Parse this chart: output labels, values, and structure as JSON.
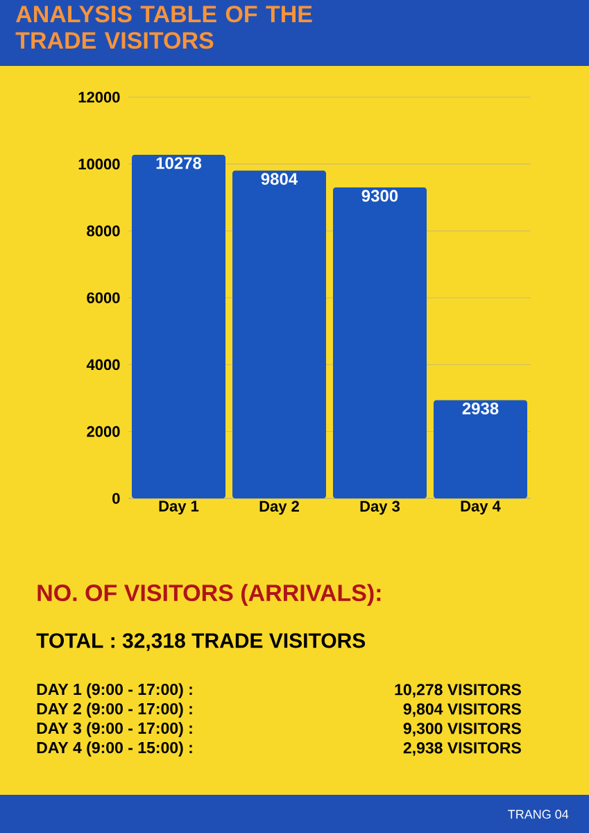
{
  "chart_data": {
    "type": "bar",
    "title": "ANALYSIS TABLE OF THE TRADE VISITORS",
    "categories": [
      "Day 1",
      "Day 2",
      "Day 3",
      "Day 4"
    ],
    "values": [
      10278,
      9804,
      9300,
      2938
    ],
    "color": "#1a56be",
    "ylim": [
      0,
      12000
    ],
    "yticks": [
      0,
      2000,
      4000,
      6000,
      8000,
      10000,
      12000
    ],
    "grid": "y",
    "data_labels": true,
    "annotations": [
      "NO. OF VISITORS (ARRIVALS):",
      "TOTAL : 32,318 TRADE VISITORS",
      "DAY 1  (9:00 - 17:00) :",
      "DAY 2 (9:00 - 17:00) :",
      "DAY 3 (9:00 - 17:00) :",
      "DAY 4 (9:00 - 15:00) :",
      "10,278   VISITORS",
      "9,804  VISITORS",
      "9,300  VISITORS",
      "2,938   VISITORS",
      "TRANG 04"
    ]
  }
}
